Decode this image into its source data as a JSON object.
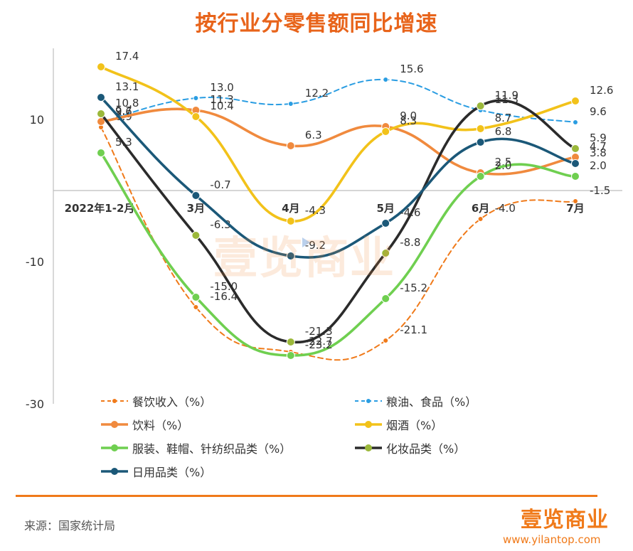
{
  "title": "按行业分零售额同比增速",
  "source": "来源：国家统计局",
  "brand": {
    "logo": "壹览商业",
    "url": "www.yilantop.com",
    "watermark": "壹览商业"
  },
  "colors": {
    "title": "#e8641b",
    "accent": "#f07a1a"
  },
  "chart_data": {
    "type": "line",
    "title": "按行业分零售额同比增速",
    "categories": [
      "2022年1-2月",
      "3月",
      "4月",
      "5月",
      "6月",
      "7月"
    ],
    "y_ticks": [
      10,
      -10,
      -30
    ],
    "ylim": [
      -30,
      20
    ],
    "grid": false,
    "legend_position": "bottom",
    "series": [
      {
        "name": "餐饮收入（%）",
        "values": [
          8.9,
          -16.4,
          -22.7,
          -21.1,
          -4.0,
          -1.5
        ],
        "color": "#f07a1a",
        "dashed": true,
        "labels": [
          "8.9",
          "-16.4",
          "-22.7",
          "-21.1",
          "-4.0",
          "-1.5"
        ]
      },
      {
        "name": "粮油、食品（%）",
        "values": [
          9.6,
          13.0,
          12.2,
          15.6,
          11.3,
          9.6
        ],
        "color": "#2a9de2",
        "dashed": true,
        "labels": [
          "9.6",
          "13.0",
          "12.2",
          "15.6",
          "11.3",
          "9.6"
        ]
      },
      {
        "name": "饮料（%）",
        "values": [
          9.7,
          11.3,
          6.3,
          9.0,
          2.5,
          4.7
        ],
        "color": "#f08a3e",
        "dashed": false,
        "labels": [
          "9.7",
          "11.3",
          "6.3",
          "9.0",
          "2.5",
          "4.7"
        ]
      },
      {
        "name": "烟酒（%）",
        "values": [
          17.4,
          10.4,
          -4.3,
          8.3,
          8.7,
          12.6
        ],
        "color": "#f2c21a",
        "dashed": false,
        "labels": [
          "17.4",
          "10.4",
          "-4.3",
          "8.3",
          "8.7",
          "12.6"
        ]
      },
      {
        "name": "服装、鞋帽、针纺织品类（%）",
        "values": [
          5.3,
          -15.0,
          -23.2,
          -15.2,
          2.0,
          2.0
        ],
        "color": "#6fcf50",
        "dashed": false,
        "labels": [
          "5.3",
          "-15.0",
          "-23.2",
          "-15.2",
          "2.0",
          "2.0"
        ]
      },
      {
        "name": "化妆品类（%）",
        "values": [
          10.8,
          -6.3,
          -21.3,
          -8.8,
          11.9,
          5.9
        ],
        "color": "#2b2b2b",
        "dashed": false,
        "labels": [
          "10.8",
          "-6.3",
          "-21.3",
          "-8.8",
          "11.9",
          "5.9"
        ]
      },
      {
        "name": "日用品类（%）",
        "values": [
          13.1,
          -0.7,
          -9.2,
          -4.6,
          6.8,
          3.8
        ],
        "color": "#1b5878",
        "dashed": false,
        "labels": [
          "13.1",
          "-0.7",
          "-9.2",
          "-4.6",
          "6.8",
          "3.8"
        ]
      }
    ]
  }
}
